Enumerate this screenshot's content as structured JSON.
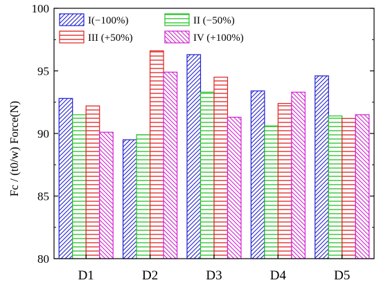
{
  "chart_data": {
    "type": "bar",
    "categories": [
      "D1",
      "D2",
      "D3",
      "D4",
      "D5"
    ],
    "series": [
      {
        "name": "I(−100%)",
        "color": "#1f1fd0",
        "pattern": "hatch-diagonal",
        "values": [
          92.8,
          89.5,
          96.3,
          93.4,
          94.6
        ]
      },
      {
        "name": "II (−50%)",
        "color": "#22c022",
        "pattern": "hatch-horizontal",
        "values": [
          91.5,
          89.9,
          93.3,
          90.6,
          91.4
        ]
      },
      {
        "name": "III (+50%)",
        "color": "#e01f1f",
        "pattern": "hatch-horizontal",
        "values": [
          92.2,
          96.6,
          94.5,
          92.4,
          91.2
        ]
      },
      {
        "name": "IV (+100%)",
        "color": "#d020d0",
        "pattern": "hatch-diagonal-back",
        "values": [
          90.1,
          94.9,
          91.3,
          93.3,
          91.5
        ]
      }
    ],
    "ylim": [
      80,
      100
    ],
    "yticks": [
      "80",
      "85",
      "90",
      "95",
      "100"
    ],
    "ylabel": "Fc / (t0/w)  Force(N)",
    "xlabel": "",
    "legend_position": "top-left",
    "grid": false
  }
}
